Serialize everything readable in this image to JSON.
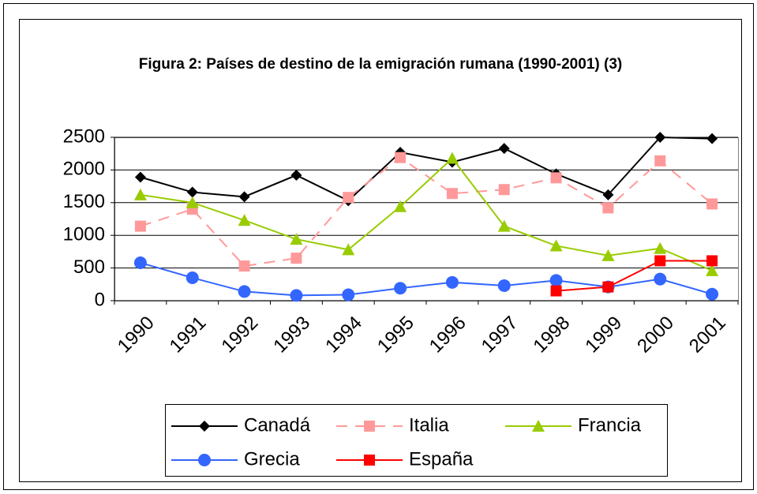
{
  "chart_data": {
    "type": "line",
    "title": "Figura 2: Países de destino de la emigración rumana (1990-2001) (3)",
    "categories": [
      "1990",
      "1991",
      "1992",
      "1993",
      "1994",
      "1995",
      "1996",
      "1997",
      "1998",
      "1999",
      "2000",
      "2001"
    ],
    "ylim": [
      0,
      2500
    ],
    "yticks": [
      0,
      500,
      1000,
      1500,
      2000,
      2500
    ],
    "grid": true,
    "series": [
      {
        "name": "Canadá",
        "color": "#000000",
        "marker": "diamond",
        "dash": false,
        "values": [
          1890,
          1660,
          1590,
          1920,
          1530,
          2270,
          2120,
          2330,
          1940,
          1620,
          2500,
          2480
        ]
      },
      {
        "name": "Italia",
        "color": "#ff9999",
        "marker": "square",
        "dash": true,
        "values": [
          1140,
          1400,
          530,
          650,
          1580,
          2190,
          1640,
          1700,
          1880,
          1420,
          2140,
          1480
        ]
      },
      {
        "name": "Francia",
        "color": "#99cc00",
        "marker": "triangle",
        "dash": false,
        "values": [
          1620,
          1500,
          1230,
          940,
          780,
          1440,
          2180,
          1140,
          840,
          690,
          800,
          460
        ]
      },
      {
        "name": "Grecia",
        "color": "#3366ff",
        "marker": "circle",
        "dash": false,
        "values": [
          580,
          350,
          140,
          80,
          90,
          190,
          280,
          230,
          310,
          210,
          330,
          100
        ]
      },
      {
        "name": "España",
        "color": "#ff0000",
        "marker": "square",
        "dash": false,
        "values": [
          null,
          null,
          null,
          null,
          null,
          null,
          null,
          null,
          150,
          210,
          610,
          610
        ]
      }
    ]
  }
}
